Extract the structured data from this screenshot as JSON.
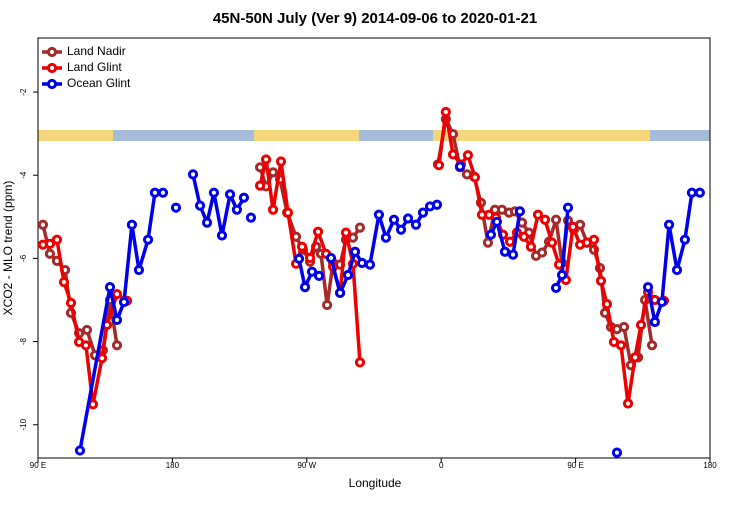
{
  "chart_data": {
    "type": "line",
    "title": "45N-50N July (Ver 9)   2014-09-06 to 2020-01-21",
    "xlabel": "Longitude",
    "ylabel": "XCO2 - MLO trend (ppm)",
    "xlim": [
      90,
      540
    ],
    "ylim": [
      -10.8,
      -0.7
    ],
    "xticks": [
      {
        "value": 90,
        "label": "90 E"
      },
      180,
      {
        "value": 270,
        "label": "90 W"
      },
      {
        "value": 360,
        "label": "0"
      },
      {
        "value": 450,
        "label": "90 E"
      },
      {
        "value": 540,
        "label": "180"
      }
    ],
    "yticks": [
      -10,
      -8,
      -6,
      -4,
      -2
    ],
    "legend": "upper left",
    "series": [
      {
        "name": "Land Nadir",
        "color": "#a52a2a",
        "x": [
          93.3,
          98.0,
          102.7,
          108.1,
          112.1,
          117.5,
          122.8,
          128.2,
          133.5,
          138.2,
          142.9,
          null,
          238.7,
          242.7,
          247.4,
          252.1,
          256.8,
          262.8,
          267.5,
          272.2,
          276.2,
          279.5,
          283.6,
          287.6,
          292.3,
          296.2,
          300.9,
          305.6,
          null,
          357.8,
          363.1,
          367.9,
          372.6,
          377.3,
          381.9,
          386.6,
          391.3,
          396.0,
          400.7,
          405.4,
          409.4,
          414.1,
          418.8,
          423.5,
          427.5,
          432.2,
          436.9,
          440.9,
          444.9,
          448.9,
          453.0,
          457.6,
          462.3,
          466.3,
          469.7,
          473.7,
          477.7,
          482.4,
          487.1,
          491.8,
          496.5,
          501.2
        ],
        "values": [
          -5.19,
          -5.89,
          -6.06,
          -6.28,
          -7.31,
          -7.8,
          -7.72,
          -8.33,
          -8.21,
          -7.0,
          -8.09,
          null,
          -3.81,
          -4.27,
          -3.93,
          -4.1,
          -4.9,
          -5.48,
          -5.79,
          -6.08,
          -5.72,
          -5.89,
          -7.12,
          -6.11,
          -6.15,
          -5.55,
          -5.5,
          -5.26,
          null,
          -3.74,
          -2.65,
          -3.01,
          -3.81,
          -3.98,
          -4.03,
          -4.66,
          -5.62,
          -4.83,
          -4.83,
          -4.9,
          -4.87,
          -5.14,
          -5.38,
          -5.94,
          -5.86,
          -5.6,
          -5.07,
          -6.11,
          -5.09,
          -5.31,
          -5.19,
          -5.62,
          -5.79,
          -6.23,
          -7.31,
          -7.65,
          -7.7,
          -7.65,
          -8.57,
          -8.38,
          -7.0,
          -8.09
        ]
      },
      {
        "name": "Land Glint",
        "color": "#ee0000",
        "x": [
          93.3,
          98.0,
          102.7,
          107.4,
          112.1,
          117.5,
          122.1,
          126.8,
          132.9,
          136.2,
          142.9,
          149.6,
          null,
          238.7,
          242.7,
          247.4,
          252.7,
          257.4,
          262.8,
          266.8,
          272.2,
          277.5,
          282.9,
          287.6,
          292.3,
          296.2,
          300.9,
          305.6,
          null,
          358.5,
          363.1,
          367.9,
          373.2,
          377.9,
          382.6,
          387.3,
          392.0,
          396.7,
          401.4,
          406.1,
          410.7,
          415.4,
          420.1,
          424.8,
          429.5,
          434.2,
          438.9,
          443.5,
          448.2,
          453.0,
          457.6,
          462.3,
          467.0,
          471.0,
          475.7,
          480.4,
          485.1,
          489.8,
          493.8,
          498.5,
          503.1,
          509.2
        ],
        "values": [
          -5.67,
          -5.65,
          -5.55,
          -6.57,
          -7.07,
          -8.01,
          -8.09,
          -9.51,
          -8.4,
          -7.6,
          -6.86,
          -7.02,
          null,
          -4.25,
          -3.62,
          -4.83,
          -3.67,
          -4.9,
          -6.13,
          -5.72,
          -5.99,
          -5.36,
          -5.89,
          -6.2,
          -6.83,
          -5.38,
          -6.13,
          -8.5,
          null,
          -3.76,
          -2.48,
          -3.5,
          -3.74,
          -3.52,
          -4.05,
          -4.95,
          -4.95,
          -5.02,
          -5.43,
          -5.6,
          -5.38,
          -5.48,
          -5.72,
          -4.95,
          -5.07,
          -5.62,
          -6.15,
          -6.52,
          -5.24,
          -5.67,
          -5.62,
          -5.55,
          -6.54,
          -7.1,
          -8.01,
          -8.09,
          -9.49,
          -8.38,
          -7.6,
          -6.81,
          -7.0,
          -7.02
        ]
      },
      {
        "name": "Ocean Glint",
        "color": "#0000ee",
        "x": [
          118.1,
          138.2,
          142.9,
          147.6,
          152.9,
          157.6,
          163.7,
          168.3,
          173.7,
          null,
          182.4,
          null,
          193.8,
          198.5,
          203.2,
          207.8,
          213.2,
          218.6,
          223.2,
          227.9,
          null,
          232.6,
          null,
          264.8,
          268.8,
          273.5,
          278.2,
          null,
          286.2,
          292.3,
          297.6,
          302.3,
          307.0,
          312.3,
          318.3,
          323.0,
          328.4,
          333.1,
          337.8,
          343.1,
          347.8,
          352.5,
          357.2,
          null,
          372.6,
          null,
          393.3,
          397.3,
          402.7,
          408.1,
          412.7,
          null,
          436.9,
          440.9,
          444.9,
          null,
          477.7,
          null,
          498.5,
          503.1,
          507.8,
          512.6,
          517.9,
          523.2,
          527.9,
          533.2
        ],
        "values": [
          -10.62,
          -6.69,
          -7.48,
          -7.05,
          -5.19,
          -6.28,
          -5.55,
          -4.42,
          -4.42,
          null,
          -4.78,
          null,
          -3.98,
          -4.73,
          -5.14,
          -4.42,
          -5.45,
          -4.46,
          -4.83,
          -4.54,
          null,
          -5.02,
          null,
          -6.01,
          -6.69,
          -6.32,
          -6.42,
          null,
          -5.99,
          -6.83,
          -6.4,
          -5.84,
          -6.11,
          -6.15,
          -4.95,
          -5.5,
          -5.07,
          -5.31,
          -5.04,
          -5.19,
          -4.9,
          -4.75,
          -4.71,
          null,
          -3.79,
          null,
          -5.43,
          -5.12,
          -5.84,
          -5.91,
          -4.87,
          null,
          -6.71,
          -6.4,
          -4.78,
          null,
          -10.67,
          null,
          -6.69,
          -7.53,
          -7.05,
          -5.19,
          -6.28,
          -5.55,
          -4.42,
          -4.42
        ]
      }
    ]
  }
}
